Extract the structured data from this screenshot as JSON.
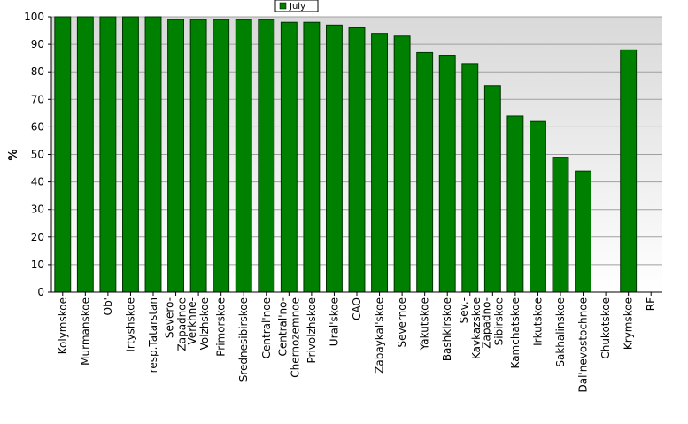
{
  "chart_data": {
    "type": "bar",
    "ylabel": "%",
    "xlabel": "",
    "ylim": [
      0,
      100
    ],
    "yticks": [
      0,
      10,
      20,
      30,
      40,
      50,
      60,
      70,
      80,
      90,
      100
    ],
    "grid": true,
    "legend_position": "top",
    "colors": {
      "bar": "#008000",
      "bar_edge": "#003300",
      "plot_bg_top": "#d9d9d9",
      "plot_bg_bottom": "#ffffff",
      "grid": "#a0a0a0"
    },
    "categories": [
      "Kolymskoe",
      "Murmanskoe",
      "Ob'",
      "Irtyshskoe",
      "resp.Tatarstan",
      "Severo-Zapadnoe",
      "Verkhne-Volzhskoe",
      "Primorskoe",
      "Srednesibirskoe",
      "Central'noe",
      "Central'no-Chernozemnoe",
      "Privolzhskoe",
      "Ural'skoe",
      "CAO",
      "Zabaykal'skoe",
      "Severnoe",
      "Yakutskoe",
      "Bashkirskoe",
      "Sev.-Kavkazskoe",
      "Zapadno-Sibirskoe",
      "Kamchatskoe",
      "Irkutskoe",
      "Sakhalinskoe",
      "Dal'nevostochnoe",
      "Chukotskoe",
      "Krymskoe",
      "RF"
    ],
    "label_lines": [
      [
        "Kolymskoe"
      ],
      [
        "Murmanskoe"
      ],
      [
        "Ob'"
      ],
      [
        "Irtyshskoe"
      ],
      [
        "resp.Tatarstan"
      ],
      [
        "Severo-",
        "Zapadnoe"
      ],
      [
        "Verkhne-",
        "Volzhskoe"
      ],
      [
        "Primorskoe"
      ],
      [
        "Srednesibirskoe"
      ],
      [
        "Central'noe"
      ],
      [
        "Central'no-",
        "Chernozemnoe"
      ],
      [
        "Privolzhskoe"
      ],
      [
        "Ural'skoe"
      ],
      [
        "CAO"
      ],
      [
        "Zabaykal'skoe"
      ],
      [
        "Severnoe"
      ],
      [
        "Yakutskoe"
      ],
      [
        "Bashkirskoe"
      ],
      [
        "Sev.-",
        "Kavkazskoe"
      ],
      [
        "Zapadno-",
        "Sibirskoe"
      ],
      [
        "Kamchatskoe"
      ],
      [
        "Irkutskoe"
      ],
      [
        "Sakhalinskoe"
      ],
      [
        "Dal'nevostochnoe"
      ],
      [
        "Chukotskoe"
      ],
      [
        "Krymskoe"
      ],
      [
        "RF"
      ]
    ],
    "series": [
      {
        "name": "July",
        "values": [
          100,
          100,
          100,
          100,
          100,
          99,
          99,
          99,
          99,
          99,
          98,
          98,
          97,
          96,
          94,
          93,
          87,
          86,
          83,
          75,
          64,
          62,
          49,
          44,
          0,
          88,
          0
        ]
      }
    ]
  }
}
